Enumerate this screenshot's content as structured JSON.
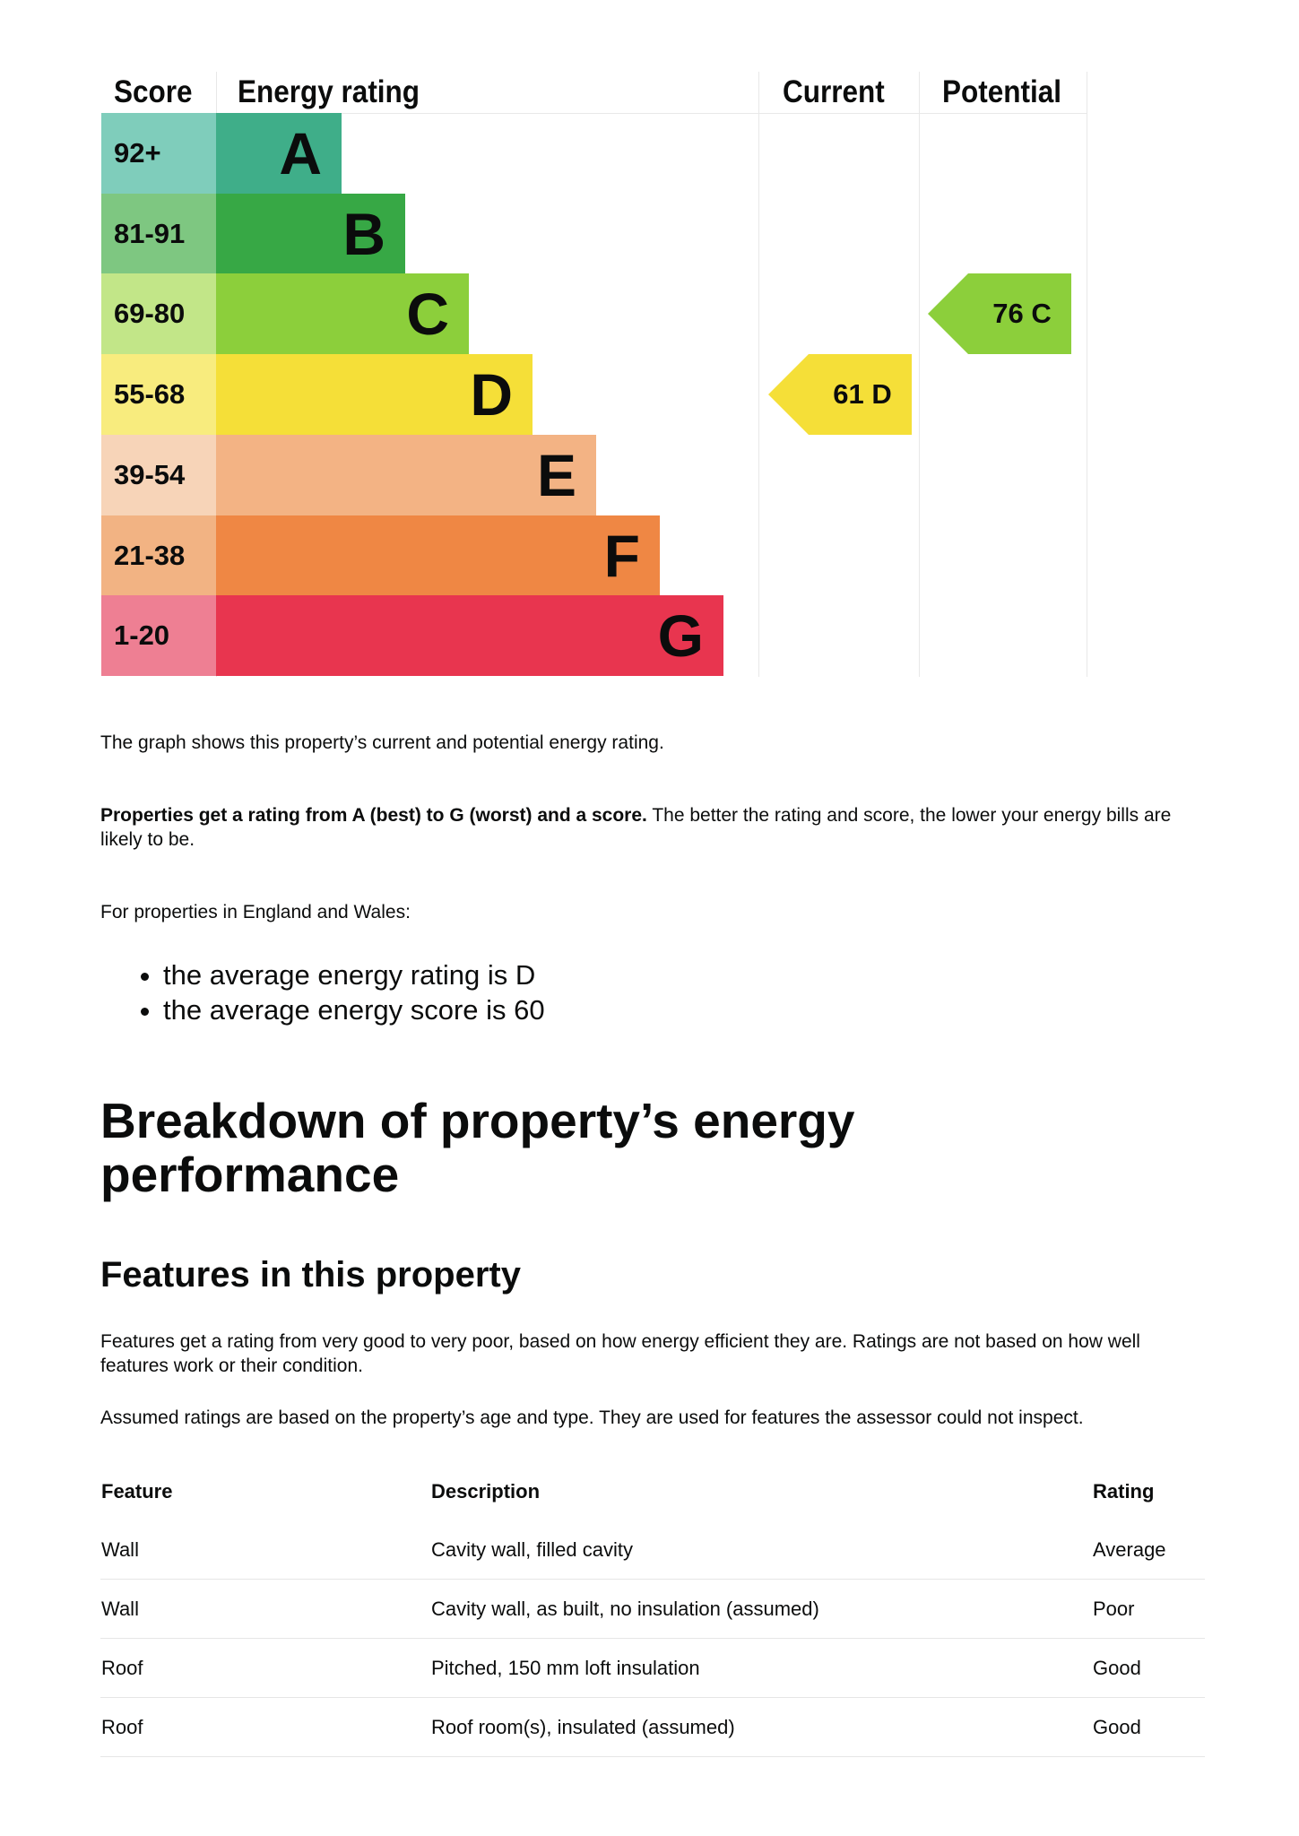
{
  "chart_data": {
    "type": "bar",
    "headers": {
      "score": "Score",
      "rating": "Energy rating",
      "current": "Current",
      "potential": "Potential"
    },
    "bands": [
      {
        "letter": "A",
        "range": "92+",
        "color": "#3fae89",
        "light": "#7fcdbb"
      },
      {
        "letter": "B",
        "range": "81-91",
        "color": "#37a845",
        "light": "#7ec781"
      },
      {
        "letter": "C",
        "range": "69-80",
        "color": "#8ccf3b",
        "light": "#c2e688"
      },
      {
        "letter": "D",
        "range": "55-68",
        "color": "#f5df38",
        "light": "#f8ec7e"
      },
      {
        "letter": "E",
        "range": "39-54",
        "color": "#f3b384",
        "light": "#f7d4b8"
      },
      {
        "letter": "F",
        "range": "21-38",
        "color": "#ef8744",
        "light": "#f2b383"
      },
      {
        "letter": "G",
        "range": "1-20",
        "color": "#e8354f",
        "light": "#ee7f93"
      }
    ],
    "current": {
      "score": 61,
      "letter": "D",
      "label": "61  D",
      "color": "#f5df38"
    },
    "potential": {
      "score": 76,
      "letter": "C",
      "label": "76  C",
      "color": "#8ccf3b"
    }
  },
  "text": {
    "graph_note": "The graph shows this property’s current and potential energy rating.",
    "rating_bold": "Properties get a rating from A (best) to G (worst) and a score.",
    "rating_rest": " The better the rating and score, the lower your energy bills are likely to be.",
    "england": "For properties in England and Wales:",
    "bullets": [
      "the average energy rating is D",
      "the average energy score is 60"
    ],
    "h1": "Breakdown of property’s energy performance",
    "h2": "Features in this property",
    "features_note": "Features get a rating from very good to very poor, based on how energy efficient they are. Ratings are not based on how well features work or their condition.",
    "assumed_note": "Assumed ratings are based on the property’s age and type. They are used for features the assessor could not inspect."
  },
  "table": {
    "headers": [
      "Feature",
      "Description",
      "Rating"
    ],
    "rows": [
      [
        "Wall",
        "Cavity wall, filled cavity",
        "Average"
      ],
      [
        "Wall",
        "Cavity wall, as built, no insulation (assumed)",
        "Poor"
      ],
      [
        "Roof",
        "Pitched, 150 mm loft insulation",
        "Good"
      ],
      [
        "Roof",
        "Roof room(s), insulated (assumed)",
        "Good"
      ]
    ]
  }
}
